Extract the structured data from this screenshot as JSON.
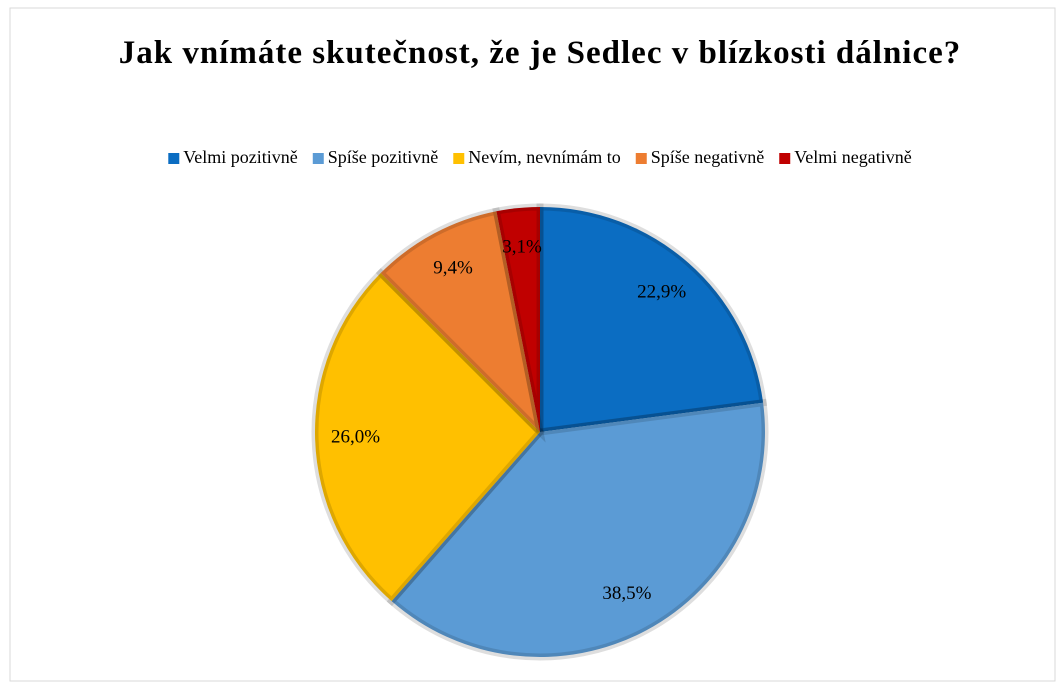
{
  "chart_data": {
    "type": "pie",
    "title": "Jak vnímáte skutečnost, že je Sedlec v blízkosti dálnice?",
    "categories": [
      "Velmi pozitivně",
      "Spíše pozitivně",
      "Nevím, nevnímám to",
      "Spíše negativně",
      "Velmi negativně"
    ],
    "values": [
      22.9,
      38.5,
      26.0,
      9.4,
      3.1
    ],
    "value_labels": [
      "22,9%",
      "38,5%",
      "26,0%",
      "9,4%",
      "3,1%"
    ],
    "colors": [
      "#0b6dc2",
      "#5b9bd5",
      "#ffc000",
      "#ed7d31",
      "#c00000"
    ],
    "legend": "top"
  }
}
